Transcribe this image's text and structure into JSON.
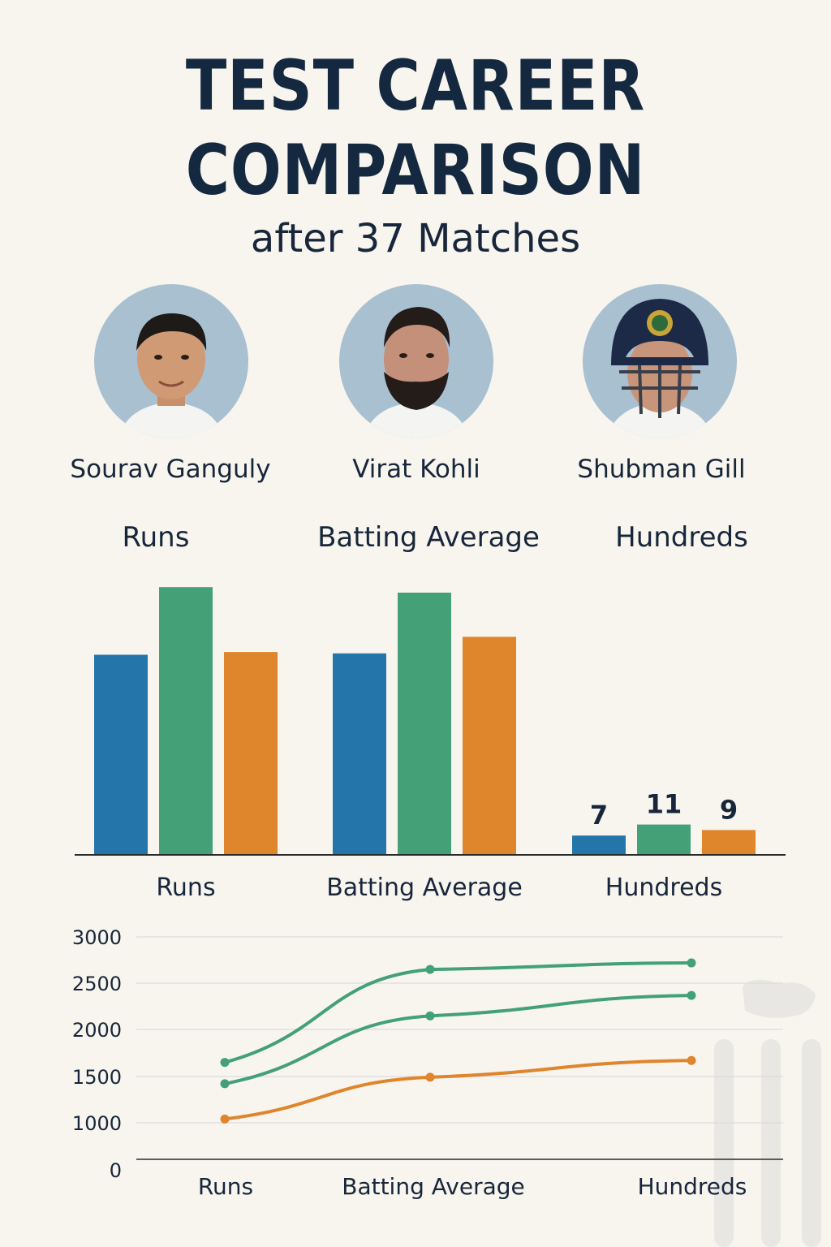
{
  "title_line1": "TEST CAREER",
  "title_line2": "COMPARISON",
  "subtitle": "after 37 Matches",
  "players": [
    {
      "name": "Sourav Ganguly"
    },
    {
      "name": "Virat Kohli"
    },
    {
      "name": "Shubman Gill"
    }
  ],
  "metric_headers": [
    "Runs",
    "Batting Average",
    "Hundreds"
  ],
  "colors": {
    "ganguly": "#2476aa",
    "kohli": "#43a077",
    "gill": "#df852c",
    "axis": "#2b2b2b",
    "grid": "#dcdcdc"
  },
  "chart_data": [
    {
      "type": "bar",
      "categories": [
        "Runs",
        "Batting Average",
        "Hundreds"
      ],
      "series": [
        {
          "name": "Sourav Ganguly",
          "values": [
            72.5,
            73,
            7
          ]
        },
        {
          "name": "Virat Kohli",
          "values": [
            97,
            95,
            11
          ]
        },
        {
          "name": "Shubman Gill",
          "values": [
            73.5,
            79,
            9
          ]
        }
      ],
      "data_labels": {
        "Hundreds": [
          "7",
          "11",
          "9"
        ]
      },
      "ylim": [
        0,
        100
      ]
    },
    {
      "type": "line",
      "categories": [
        "Runs",
        "Batting Average",
        "Hundreds"
      ],
      "y_ticks": [
        "0",
        "1000",
        "1500",
        "2000",
        "2500",
        "3000"
      ],
      "series": [
        {
          "values": [
            1650,
            2650,
            2720
          ]
        },
        {
          "values": [
            1420,
            2150,
            2370
          ]
        },
        {
          "values": [
            1040,
            1490,
            1670
          ]
        }
      ]
    }
  ]
}
